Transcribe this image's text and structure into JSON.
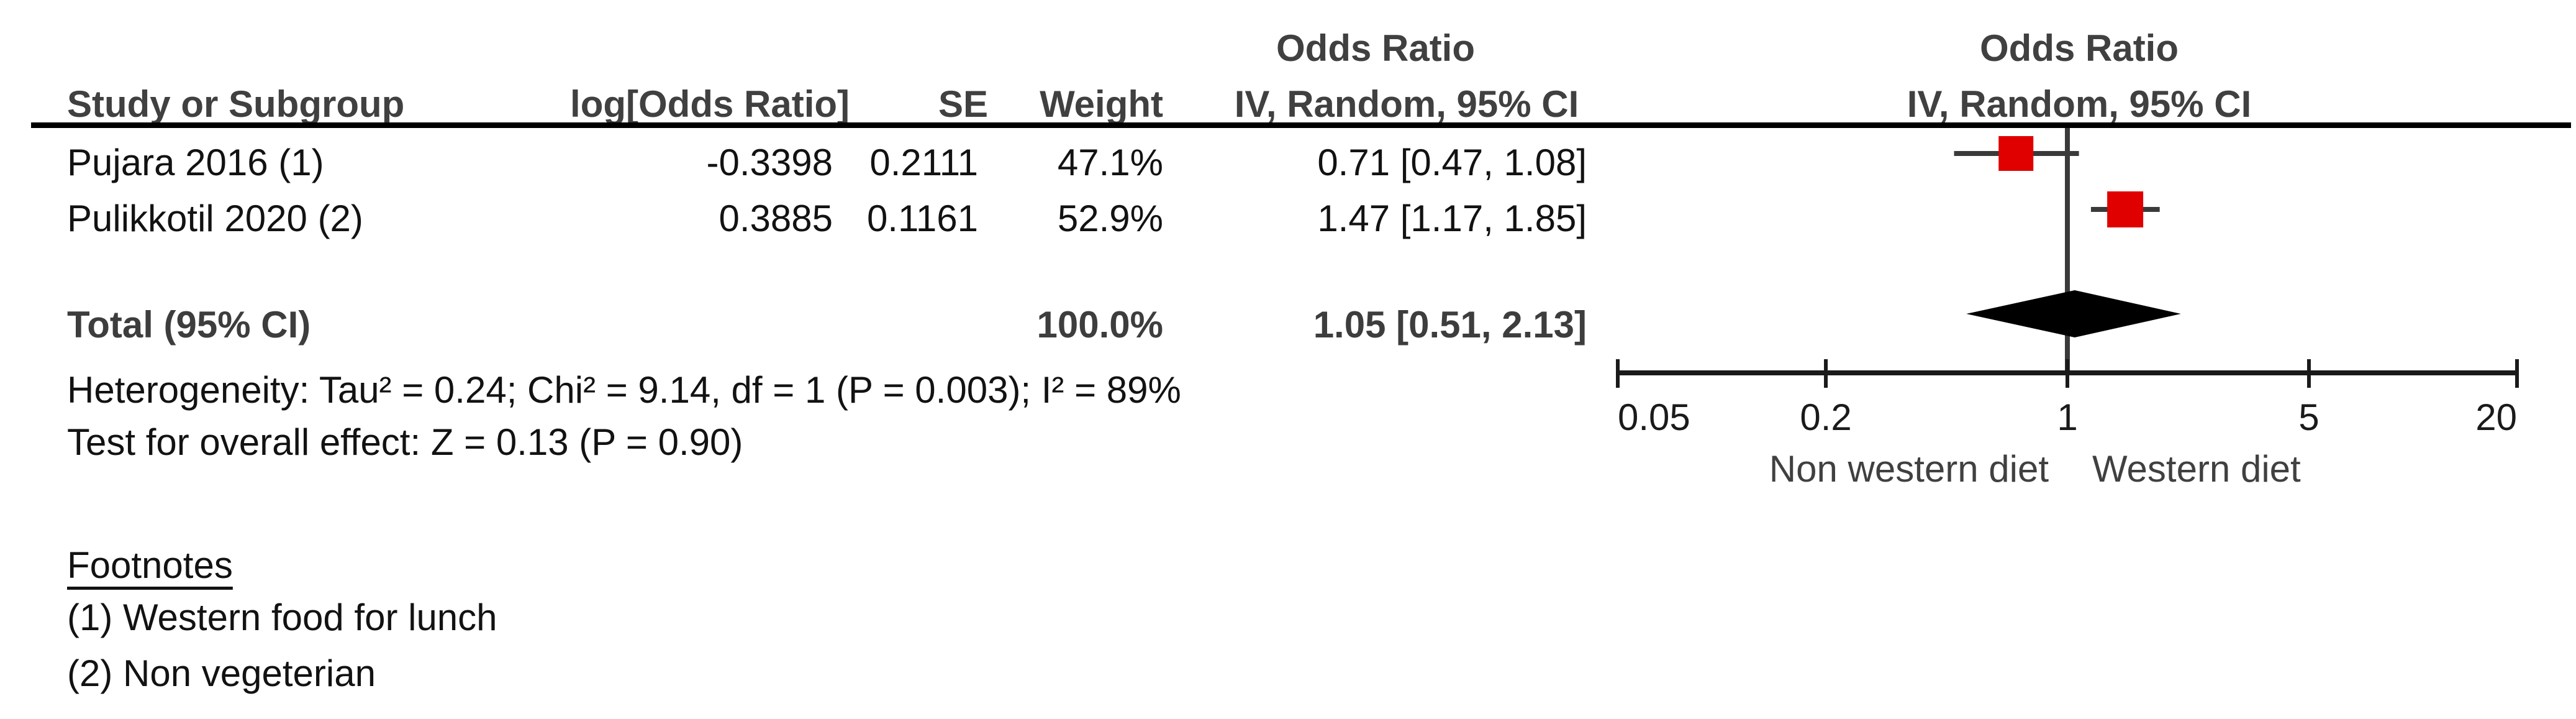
{
  "table": {
    "headers": {
      "study": "Study or Subgroup",
      "log_odds_ratio": "log[Odds Ratio]",
      "se": "SE",
      "weight": "Weight",
      "or_col_title": "Odds Ratio",
      "or_col_subtitle": "IV, Random, 95% CI",
      "plot_col_title": "Odds Ratio",
      "plot_col_subtitle": "IV, Random, 95% CI"
    }
  },
  "stats": {
    "heterogeneity": "Heterogeneity: Tau² = 0.24; Chi² = 9.14, df = 1 (P = 0.003); I² = 89%",
    "overall_effect": "Test for overall effect: Z = 0.13 (P = 0.90)"
  },
  "footnotes": {
    "title": "Footnotes",
    "items": [
      "(1) Western food for lunch",
      "(2) Non vegeterian"
    ]
  },
  "chart_data": {
    "type": "forest",
    "scale": "log",
    "effect_measure": "Odds Ratio",
    "model": "IV, Random, 95% CI",
    "axis": {
      "min": 0.05,
      "max": 20,
      "ticks": [
        0.05,
        0.2,
        1,
        5,
        20
      ],
      "tick_labels": [
        "0.05",
        "0.2",
        "1",
        "5",
        "20"
      ],
      "null_line": 1,
      "left_label": "Non western diet",
      "right_label": "Western diet"
    },
    "studies": [
      {
        "name": "Pujara 2016 (1)",
        "log_or": "-0.3398",
        "se": "0.2111",
        "weight_pct": 47.1,
        "weight_label": "47.1%",
        "or": 0.71,
        "ci_low": 0.47,
        "ci_high": 1.08,
        "or_ci_label": "0.71 [0.47, 1.08]"
      },
      {
        "name": "Pulikkotil 2020 (2)",
        "log_or": "0.3885",
        "se": "0.1161",
        "weight_pct": 52.9,
        "weight_label": "52.9%",
        "or": 1.47,
        "ci_low": 1.17,
        "ci_high": 1.85,
        "or_ci_label": "1.47 [1.17, 1.85]"
      }
    ],
    "total": {
      "name": "Total (95% CI)",
      "weight_label": "100.0%",
      "or": 1.05,
      "ci_low": 0.51,
      "ci_high": 2.13,
      "or_ci_label": "1.05 [0.51, 2.13]"
    },
    "colors": {
      "square": "#e00000",
      "diamond": "#000000",
      "ci_line": "#3a3a3a",
      "axis": "#1a1a1a"
    }
  }
}
